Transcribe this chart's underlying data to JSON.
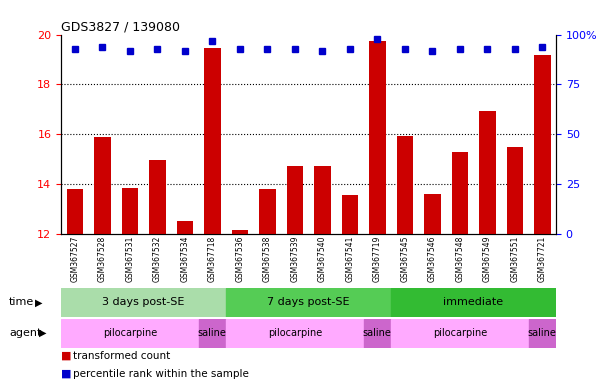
{
  "title": "GDS3827 / 139080",
  "samples": [
    "GSM367527",
    "GSM367528",
    "GSM367531",
    "GSM367532",
    "GSM367534",
    "GSM367718",
    "GSM367536",
    "GSM367538",
    "GSM367539",
    "GSM367540",
    "GSM367541",
    "GSM367719",
    "GSM367545",
    "GSM367546",
    "GSM367548",
    "GSM367549",
    "GSM367551",
    "GSM367721"
  ],
  "transformed_count": [
    13.8,
    15.9,
    13.85,
    14.98,
    12.55,
    19.45,
    12.15,
    13.8,
    14.72,
    14.73,
    13.58,
    19.75,
    15.95,
    13.62,
    15.28,
    16.95,
    15.5,
    19.2
  ],
  "percentile_rank": [
    93,
    94,
    92,
    93,
    92,
    97,
    93,
    93,
    93,
    92,
    93,
    98,
    93,
    92,
    93,
    93,
    93,
    94
  ],
  "ylim_left": [
    12,
    20
  ],
  "ylim_right": [
    0,
    100
  ],
  "yticks_left": [
    12,
    14,
    16,
    18,
    20
  ],
  "yticks_right": [
    0,
    25,
    50,
    75,
    100
  ],
  "bar_color": "#cc0000",
  "dot_color": "#0000cc",
  "time_groups": [
    {
      "label": "3 days post-SE",
      "start": 0,
      "end": 5,
      "color": "#aaddaa"
    },
    {
      "label": "7 days post-SE",
      "start": 6,
      "end": 11,
      "color": "#55cc55"
    },
    {
      "label": "immediate",
      "start": 12,
      "end": 17,
      "color": "#33bb33"
    }
  ],
  "agent_groups": [
    {
      "label": "pilocarpine",
      "start": 0,
      "end": 4,
      "color": "#ffaaff"
    },
    {
      "label": "saline",
      "start": 5,
      "end": 5,
      "color": "#cc66cc"
    },
    {
      "label": "pilocarpine",
      "start": 6,
      "end": 10,
      "color": "#ffaaff"
    },
    {
      "label": "saline",
      "start": 11,
      "end": 11,
      "color": "#cc66cc"
    },
    {
      "label": "pilocarpine",
      "start": 12,
      "end": 16,
      "color": "#ffaaff"
    },
    {
      "label": "saline",
      "start": 17,
      "end": 17,
      "color": "#cc66cc"
    }
  ],
  "legend_items": [
    {
      "label": "transformed count",
      "color": "#cc0000"
    },
    {
      "label": "percentile rank within the sample",
      "color": "#0000cc"
    }
  ],
  "time_label": "time",
  "agent_label": "agent"
}
